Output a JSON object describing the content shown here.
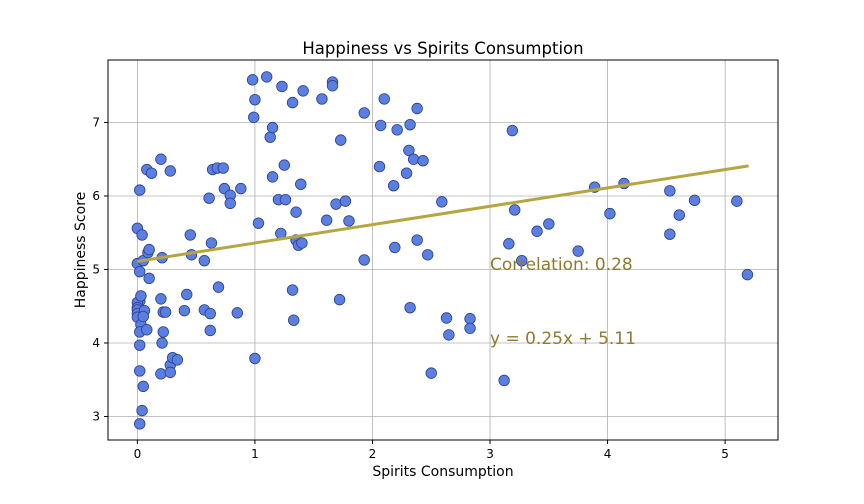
{
  "chart_data": {
    "type": "scatter",
    "title": "Happiness vs Spirits Consumption",
    "xlabel": "Spirits Consumption",
    "ylabel": "Happiness Score",
    "xlim": [
      -0.25,
      5.45
    ],
    "ylim": [
      2.68,
      7.85
    ],
    "xticks": [
      "0",
      "1",
      "2",
      "3",
      "4",
      "5"
    ],
    "yticks": [
      "3",
      "4",
      "5",
      "6",
      "7"
    ],
    "grid": true,
    "marker_color": "#5b7fe0",
    "marker_edge": "#2a3f8f",
    "trend_color": "#b5a642",
    "annotation_color": "#8f7a2e",
    "annotations": {
      "correlation": "Correlation:  0.28",
      "equation": "y = 0.25x + 5.11"
    },
    "trendline": {
      "slope": 0.25,
      "intercept": 5.11,
      "x_range": [
        0,
        5.2
      ]
    },
    "points": [
      [
        0.0,
        5.56
      ],
      [
        0.0,
        5.08
      ],
      [
        0.02,
        4.97
      ],
      [
        0.02,
        6.08
      ],
      [
        0.02,
        4.57
      ],
      [
        0.0,
        4.55
      ],
      [
        0.0,
        4.48
      ],
      [
        0.0,
        4.45
      ],
      [
        0.0,
        4.4
      ],
      [
        0.0,
        4.35
      ],
      [
        0.03,
        4.64
      ],
      [
        0.03,
        4.25
      ],
      [
        0.02,
        4.15
      ],
      [
        0.02,
        3.97
      ],
      [
        0.02,
        3.62
      ],
      [
        0.02,
        2.9
      ],
      [
        0.04,
        3.08
      ],
      [
        0.05,
        3.41
      ],
      [
        0.04,
        5.47
      ],
      [
        0.05,
        5.12
      ],
      [
        0.06,
        4.44
      ],
      [
        0.05,
        4.36
      ],
      [
        0.08,
        6.36
      ],
      [
        0.09,
        5.23
      ],
      [
        0.1,
        5.27
      ],
      [
        0.1,
        4.88
      ],
      [
        0.12,
        6.31
      ],
      [
        0.08,
        4.18
      ],
      [
        0.2,
        6.5
      ],
      [
        0.21,
        5.16
      ],
      [
        0.2,
        4.6
      ],
      [
        0.22,
        4.42
      ],
      [
        0.24,
        4.42
      ],
      [
        0.22,
        4.15
      ],
      [
        0.21,
        4.0
      ],
      [
        0.2,
        3.58
      ],
      [
        0.28,
        6.34
      ],
      [
        0.28,
        3.7
      ],
      [
        0.28,
        3.6
      ],
      [
        0.3,
        3.8
      ],
      [
        0.34,
        3.77
      ],
      [
        0.4,
        4.44
      ],
      [
        0.42,
        4.66
      ],
      [
        0.45,
        5.47
      ],
      [
        0.46,
        5.2
      ],
      [
        0.57,
        5.12
      ],
      [
        0.57,
        4.45
      ],
      [
        0.61,
        5.97
      ],
      [
        0.62,
        4.4
      ],
      [
        0.62,
        4.17
      ],
      [
        0.63,
        5.36
      ],
      [
        0.64,
        6.36
      ],
      [
        0.68,
        6.38
      ],
      [
        0.69,
        4.76
      ],
      [
        0.73,
        6.38
      ],
      [
        0.74,
        6.1
      ],
      [
        0.79,
        6.01
      ],
      [
        0.79,
        5.9
      ],
      [
        0.85,
        4.41
      ],
      [
        0.88,
        6.1
      ],
      [
        0.98,
        7.58
      ],
      [
        0.99,
        7.07
      ],
      [
        1.0,
        7.31
      ],
      [
        1.0,
        3.79
      ],
      [
        1.03,
        5.63
      ],
      [
        1.1,
        7.62
      ],
      [
        1.13,
        6.8
      ],
      [
        1.15,
        6.93
      ],
      [
        1.15,
        6.26
      ],
      [
        1.2,
        5.95
      ],
      [
        1.22,
        5.49
      ],
      [
        1.23,
        7.49
      ],
      [
        1.25,
        6.42
      ],
      [
        1.26,
        5.95
      ],
      [
        1.32,
        7.27
      ],
      [
        1.32,
        4.72
      ],
      [
        1.33,
        4.31
      ],
      [
        1.35,
        5.78
      ],
      [
        1.35,
        5.4
      ],
      [
        1.37,
        5.33
      ],
      [
        1.39,
        6.16
      ],
      [
        1.4,
        5.36
      ],
      [
        1.41,
        7.43
      ],
      [
        1.57,
        7.32
      ],
      [
        1.61,
        5.67
      ],
      [
        1.66,
        7.55
      ],
      [
        1.66,
        7.5
      ],
      [
        1.69,
        5.89
      ],
      [
        1.72,
        4.59
      ],
      [
        1.73,
        6.76
      ],
      [
        1.77,
        5.93
      ],
      [
        1.8,
        5.66
      ],
      [
        1.93,
        7.13
      ],
      [
        1.93,
        5.13
      ],
      [
        2.06,
        6.4
      ],
      [
        2.07,
        6.96
      ],
      [
        2.1,
        7.32
      ],
      [
        2.18,
        6.14
      ],
      [
        2.19,
        5.3
      ],
      [
        2.21,
        6.9
      ],
      [
        2.29,
        6.31
      ],
      [
        2.31,
        6.62
      ],
      [
        2.32,
        6.97
      ],
      [
        2.32,
        4.48
      ],
      [
        2.35,
        6.5
      ],
      [
        2.38,
        7.19
      ],
      [
        2.38,
        5.4
      ],
      [
        2.43,
        6.48
      ],
      [
        2.47,
        5.2
      ],
      [
        2.5,
        3.59
      ],
      [
        2.59,
        5.92
      ],
      [
        2.63,
        4.34
      ],
      [
        2.65,
        4.11
      ],
      [
        2.83,
        4.33
      ],
      [
        2.83,
        4.2
      ],
      [
        3.12,
        3.49
      ],
      [
        3.16,
        5.35
      ],
      [
        3.19,
        6.89
      ],
      [
        3.21,
        5.81
      ],
      [
        3.27,
        5.12
      ],
      [
        3.4,
        5.52
      ],
      [
        3.5,
        5.62
      ],
      [
        3.75,
        5.25
      ],
      [
        3.89,
        6.12
      ],
      [
        4.02,
        5.76
      ],
      [
        4.14,
        6.17
      ],
      [
        4.53,
        6.07
      ],
      [
        4.53,
        5.48
      ],
      [
        4.61,
        5.74
      ],
      [
        4.74,
        5.94
      ],
      [
        5.1,
        5.93
      ],
      [
        5.19,
        4.93
      ]
    ]
  }
}
